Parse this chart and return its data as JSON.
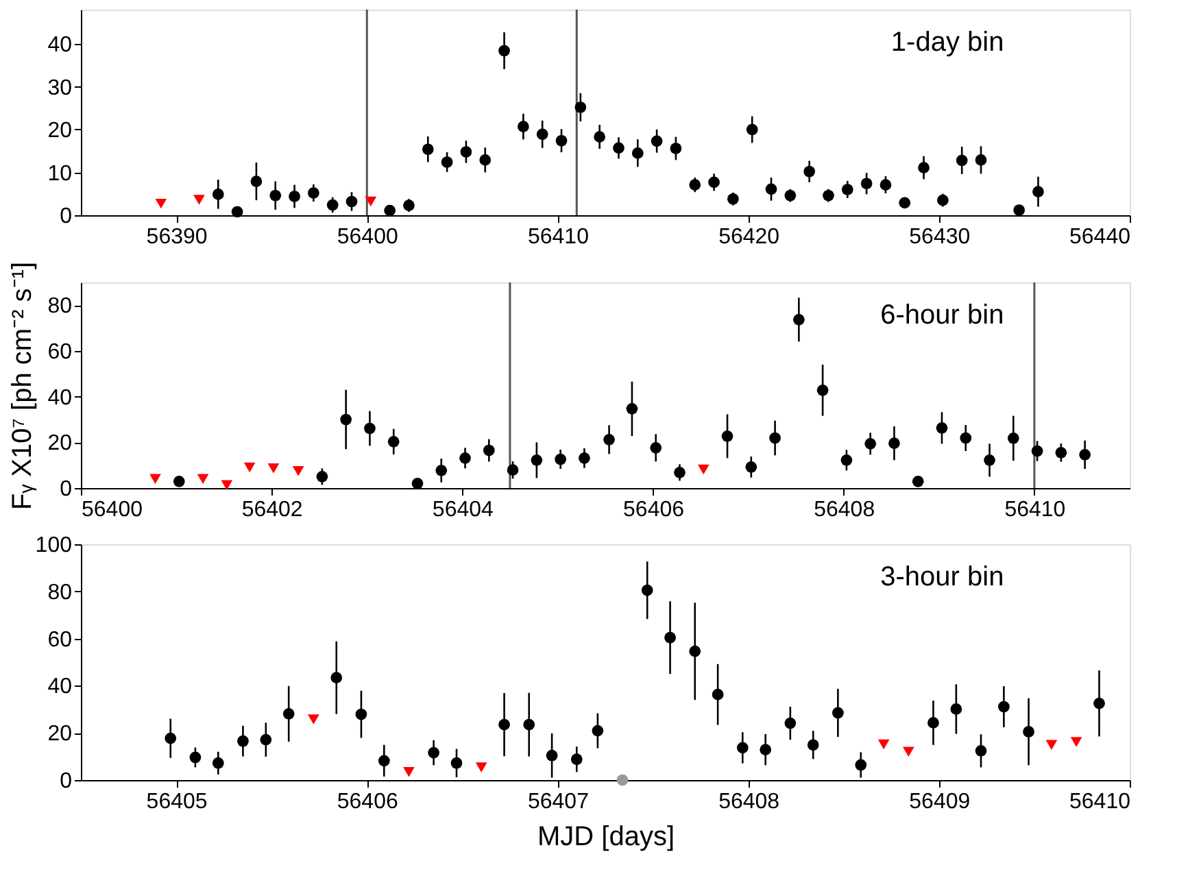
{
  "chart_data": [
    {
      "type": "scatter",
      "xlim": [
        56385,
        56440
      ],
      "xticks": [
        56390,
        56400,
        56410,
        56420,
        56430,
        56440
      ],
      "ylim": [
        0,
        48
      ],
      "yticks": [
        0,
        10,
        20,
        30,
        40
      ],
      "grid": false,
      "annotations": [
        "1-day bin"
      ],
      "ref_lines": [
        {
          "axis": "x",
          "value": 56400,
          "color": "#555555"
        },
        {
          "axis": "x",
          "value": 56411,
          "color": "#555555"
        }
      ],
      "series": [
        {
          "color": "#000000",
          "marker": "circle",
          "x": [
            56392.2,
            56393.2,
            56394.2,
            56395.2,
            56396.2,
            56397.2,
            56398.2,
            56399.2,
            56401.2,
            56402.2,
            56403.2,
            56404.2,
            56405.2,
            56406.2,
            56407.2,
            56408.2,
            56409.2,
            56410.2,
            56411.2,
            56412.2,
            56413.2,
            56414.2,
            56415.2,
            56416.2,
            56417.2,
            56418.2,
            56419.2,
            56420.2,
            56421.2,
            56422.2,
            56423.2,
            56424.2,
            56425.2,
            56426.2,
            56427.2,
            56428.2,
            56429.2,
            56430.2,
            56431.2,
            56432.2,
            56434.2,
            56435.2
          ],
          "values": [
            4.9,
            0.8,
            7.9,
            4.6,
            4.4,
            5.2,
            2.4,
            3.2,
            1.1,
            2.3,
            15.4,
            12.4,
            14.8,
            12.9,
            38.4,
            20.7,
            18.9,
            17.4,
            25.2,
            18.3,
            15.7,
            14.5,
            17.3,
            15.6,
            7.1,
            7.7,
            3.8,
            20.0,
            6.1,
            4.6,
            10.2,
            4.6,
            6.0,
            7.4,
            7.1,
            2.9,
            11.1,
            3.5,
            12.8,
            12.9,
            1.2,
            5.5
          ],
          "errors": [
            3.4,
            null,
            4.4,
            3.3,
            2.7,
            2.0,
            1.8,
            2.2,
            null,
            1.5,
            3.0,
            2.3,
            2.6,
            2.9,
            4.3,
            3.0,
            3.2,
            2.7,
            3.3,
            2.8,
            2.5,
            3.2,
            2.7,
            2.7,
            1.7,
            2.0,
            1.5,
            3.1,
            2.7,
            1.5,
            2.5,
            1.5,
            2.0,
            2.5,
            2.0,
            1.0,
            2.7,
            1.5,
            3.2,
            3.2,
            null,
            3.5
          ]
        },
        {
          "color": "#ff0000",
          "marker": "triangle",
          "x": [
            56389.2,
            56391.2,
            56400.2
          ],
          "values": [
            2.7,
            3.6,
            3.2
          ]
        }
      ]
    },
    {
      "type": "scatter",
      "xlim": [
        56400,
        56411
      ],
      "xticks": [
        56400,
        56402,
        56404,
        56406,
        56408,
        56410
      ],
      "ylim": [
        0,
        90
      ],
      "yticks": [
        0,
        20,
        40,
        60,
        80
      ],
      "grid": false,
      "ylabel": "Fᵧ X10⁷ [ph cm⁻² s⁻¹]",
      "annotations": [
        "6-hour bin"
      ],
      "ref_lines": [
        {
          "axis": "x",
          "value": 56404.5,
          "color": "#555555"
        },
        {
          "axis": "x",
          "value": 56410,
          "color": "#555555"
        }
      ],
      "series": [
        {
          "color": "#000000",
          "marker": "circle",
          "x": [
            56401.03,
            56402.53,
            56402.78,
            56403.03,
            56403.28,
            56403.53,
            56403.78,
            56404.03,
            56404.28,
            56404.53,
            56404.78,
            56405.03,
            56405.28,
            56405.54,
            56405.78,
            56406.03,
            56406.28,
            56406.78,
            56407.03,
            56407.28,
            56407.53,
            56407.78,
            56408.03,
            56408.28,
            56408.53,
            56408.78,
            56409.03,
            56409.28,
            56409.53,
            56409.78,
            56410.03,
            56410.28,
            56410.53
          ],
          "values": [
            2.9,
            5.0,
            30.0,
            26.1,
            20.3,
            2.0,
            7.7,
            13.1,
            16.5,
            7.9,
            12.2,
            12.6,
            13.1,
            21.2,
            34.7,
            17.6,
            6.8,
            22.7,
            9.2,
            21.9,
            73.7,
            42.8,
            12.2,
            19.4,
            19.6,
            2.9,
            26.3,
            21.9,
            12.2,
            21.8,
            16.2,
            15.5,
            14.6
          ],
          "errors": [
            null,
            3.6,
            13,
            7.6,
            5.6,
            null,
            5.2,
            4.5,
            4.9,
            3.8,
            7.8,
            4.2,
            4.3,
            6.3,
            11.9,
            6.0,
            3.6,
            9.6,
            4.6,
            7.6,
            9.6,
            11.2,
            4.5,
            4.8,
            7.4,
            null,
            6.9,
            5.7,
            7.2,
            9.8,
            4.4,
            4.0,
            6.2
          ]
        },
        {
          "color": "#ff0000",
          "marker": "triangle",
          "x": [
            56400.78,
            56401.28,
            56401.53,
            56401.77,
            56402.02,
            56402.28,
            56406.53
          ],
          "values": [
            4.0,
            4.0,
            1.3,
            9.0,
            8.6,
            7.4,
            8.1
          ]
        }
      ]
    },
    {
      "type": "scatter",
      "xlim": [
        56404.5,
        56410
      ],
      "xticks": [
        56405,
        56406,
        56407,
        56408,
        56409,
        56410
      ],
      "ylim": [
        0,
        100
      ],
      "yticks": [
        0,
        20,
        40,
        60,
        80,
        100
      ],
      "grid": false,
      "xlabel": "MJD [days]",
      "annotations": [
        "3-hour bin"
      ],
      "series": [
        {
          "color": "#000000",
          "marker": "circle",
          "x": [
            56404.97,
            56405.1,
            56405.22,
            56405.35,
            56405.47,
            56405.59,
            56405.84,
            56405.97,
            56406.09,
            56406.35,
            56406.47,
            56406.72,
            56406.85,
            56406.97,
            56407.1,
            56407.21,
            56407.47,
            56407.59,
            56407.72,
            56407.84,
            56407.97,
            56408.09,
            56408.22,
            56408.34,
            56408.47,
            56408.59,
            56408.97,
            56409.09,
            56409.22,
            56409.34,
            56409.47,
            56409.84
          ],
          "values": [
            17.7,
            9.6,
            7.2,
            16.5,
            17.1,
            28.1,
            43.4,
            27.9,
            8.2,
            11.6,
            7.2,
            23.5,
            23.5,
            10.4,
            8.8,
            20.9,
            80.5,
            60.4,
            54.6,
            36.3,
            13.7,
            12.9,
            24.1,
            14.9,
            28.5,
            6.4,
            24.3,
            30.1,
            12.4,
            31.1,
            20.5,
            32.5
          ],
          "errors": [
            8.3,
            4.2,
            4.8,
            6.5,
            7.2,
            11.8,
            15.4,
            10,
            6.7,
            5.3,
            6.0,
            13.4,
            13.5,
            9.4,
            5.4,
            7.4,
            12.2,
            15.4,
            20.6,
            12.9,
            6.6,
            6.6,
            7.0,
            6.0,
            10.2,
            5.4,
            9.4,
            10.5,
            7.0,
            8.7,
            14.2,
            14
          ]
        },
        {
          "color": "#ff0000",
          "marker": "triangle",
          "x": [
            56405.72,
            56406.22,
            56406.6,
            56408.71,
            56408.84,
            56409.59,
            56409.72
          ],
          "values": [
            25.7,
            3.4,
            5.4,
            15.1,
            12.0,
            14.9,
            16.1
          ]
        },
        {
          "color": "#999999",
          "marker": "circle",
          "x": [
            56407.34
          ],
          "values": [
            0
          ]
        }
      ]
    }
  ]
}
